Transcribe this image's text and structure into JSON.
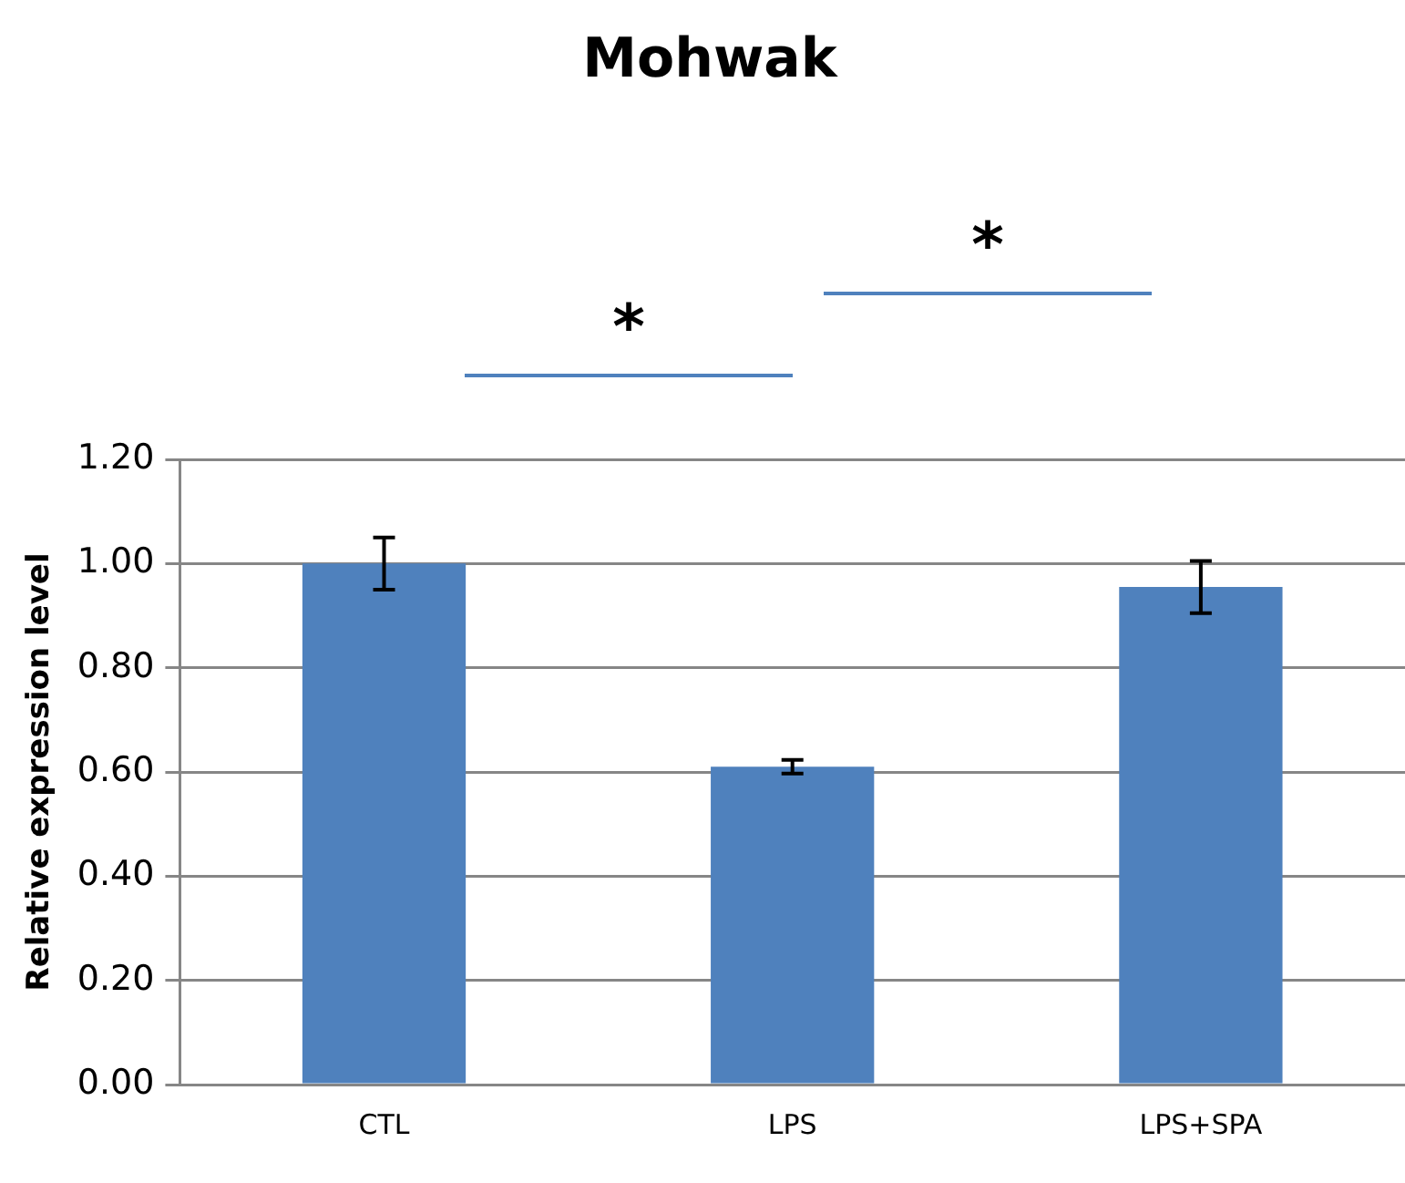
{
  "chart_data": {
    "type": "bar",
    "title": "Mohwak",
    "ylabel": "Relative expression level",
    "categories": [
      "CTL",
      "LPS",
      "LPS+SPA"
    ],
    "values": [
      1.0,
      0.61,
      0.955
    ],
    "errors": [
      0.05,
      0.013,
      0.05
    ],
    "color": "#4f81bd",
    "ylim": [
      0,
      1.2
    ],
    "yticks": [
      {
        "value": 0,
        "label": "0.00"
      },
      {
        "value": 0.2,
        "label": "0.20"
      },
      {
        "value": 0.4,
        "label": "0.40"
      },
      {
        "value": 0.6,
        "label": "0.60"
      },
      {
        "value": 0.8,
        "label": "0.80"
      },
      {
        "value": 1.0,
        "label": "1.00"
      },
      {
        "value": 1.2,
        "label": "1.20"
      }
    ],
    "grid": "y",
    "legend": false,
    "annotations": [
      "*",
      "*"
    ]
  }
}
